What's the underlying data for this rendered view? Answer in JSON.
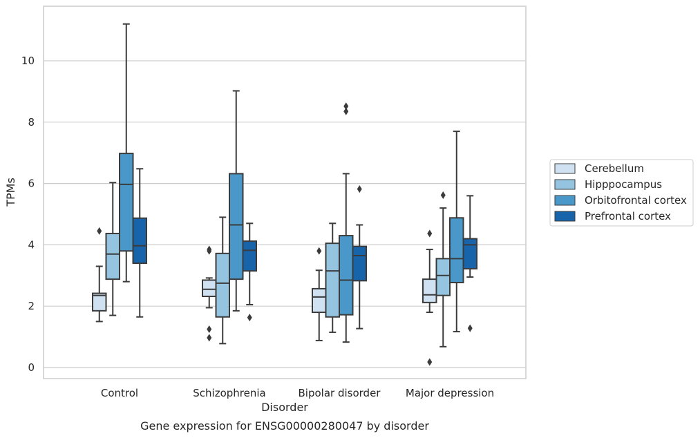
{
  "chart_data": {
    "type": "box",
    "caption": "Gene expression for ENSG00000280047 by disorder",
    "xlabel": "Disorder",
    "ylabel": "TPMs",
    "categories": [
      "Control",
      "Schizophrenia",
      "Bipolar disorder",
      "Major depression"
    ],
    "ylim": [
      -0.35,
      11.7
    ],
    "yticks": [
      0,
      2,
      4,
      6,
      8,
      10
    ],
    "grid": true,
    "legend_position": "right",
    "series": [
      {
        "name": "Cerebellum",
        "color": "#d0e1f2",
        "boxes": [
          {
            "whisker_low": 1.5,
            "q1": 1.85,
            "median": 2.35,
            "q3": 2.42,
            "whisker_high": 3.3,
            "outliers": [
              4.45
            ]
          },
          {
            "whisker_low": 1.95,
            "q1": 2.32,
            "median": 2.55,
            "q3": 2.85,
            "whisker_high": 2.92,
            "outliers": [
              3.8,
              3.85,
              1.25,
              0.97
            ]
          },
          {
            "whisker_low": 0.88,
            "q1": 1.8,
            "median": 2.3,
            "q3": 2.57,
            "whisker_high": 3.17,
            "outliers": [
              3.8
            ]
          },
          {
            "whisker_low": 1.8,
            "q1": 2.12,
            "median": 2.37,
            "q3": 2.88,
            "whisker_high": 3.85,
            "outliers": [
              4.37,
              0.18
            ]
          }
        ]
      },
      {
        "name": "Hipppocampus",
        "color": "#94c4df",
        "boxes": [
          {
            "whisker_low": 1.7,
            "q1": 2.88,
            "median": 3.7,
            "q3": 4.37,
            "whisker_high": 6.03,
            "outliers": []
          },
          {
            "whisker_low": 0.78,
            "q1": 1.65,
            "median": 2.75,
            "q3": 3.72,
            "whisker_high": 4.9,
            "outliers": []
          },
          {
            "whisker_low": 1.15,
            "q1": 1.65,
            "median": 3.15,
            "q3": 4.05,
            "whisker_high": 4.7,
            "outliers": []
          },
          {
            "whisker_low": 0.68,
            "q1": 2.35,
            "median": 3.0,
            "q3": 3.55,
            "whisker_high": 5.2,
            "outliers": [
              5.62
            ]
          }
        ]
      },
      {
        "name": "Orbitofrontal cortex",
        "color": "#4a98c9",
        "boxes": [
          {
            "whisker_low": 2.8,
            "q1": 3.8,
            "median": 5.97,
            "q3": 6.98,
            "whisker_high": 11.2,
            "outliers": []
          },
          {
            "whisker_low": 1.85,
            "q1": 2.88,
            "median": 4.65,
            "q3": 6.32,
            "whisker_high": 9.02,
            "outliers": []
          },
          {
            "whisker_low": 0.83,
            "q1": 1.72,
            "median": 2.85,
            "q3": 4.3,
            "whisker_high": 6.32,
            "outliers": [
              8.35,
              8.52
            ]
          },
          {
            "whisker_low": 1.17,
            "q1": 2.77,
            "median": 3.55,
            "q3": 4.88,
            "whisker_high": 7.7,
            "outliers": []
          }
        ]
      },
      {
        "name": "Prefrontal cortex",
        "color": "#1764ab",
        "boxes": [
          {
            "whisker_low": 1.65,
            "q1": 3.4,
            "median": 3.97,
            "q3": 4.87,
            "whisker_high": 6.48,
            "outliers": []
          },
          {
            "whisker_low": 2.05,
            "q1": 3.15,
            "median": 3.82,
            "q3": 4.12,
            "whisker_high": 4.7,
            "outliers": [
              1.63
            ]
          },
          {
            "whisker_low": 1.27,
            "q1": 2.83,
            "median": 3.65,
            "q3": 3.95,
            "whisker_high": 4.65,
            "outliers": [
              5.82
            ]
          },
          {
            "whisker_low": 2.95,
            "q1": 3.22,
            "median": 4.0,
            "q3": 4.2,
            "whisker_high": 5.6,
            "outliers": [
              1.28
            ]
          }
        ]
      }
    ]
  }
}
